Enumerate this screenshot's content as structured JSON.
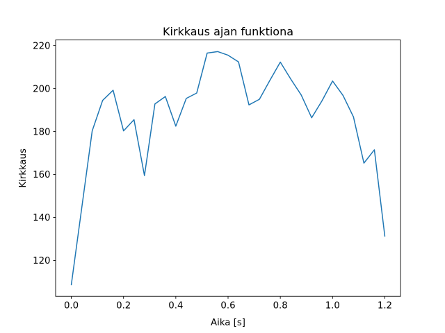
{
  "figure": {
    "background_color": "#ffffff",
    "axes_edge_color": "#000000"
  },
  "chart_data": {
    "type": "line",
    "title": "Kirkkaus ajan funktiona",
    "xlabel": "Aika [s]",
    "ylabel": "Kirkkaus",
    "line_color": "#1f77b4",
    "grid": false,
    "legend_visible": false,
    "x": [
      0.0,
      0.04,
      0.08,
      0.12,
      0.16,
      0.2,
      0.24,
      0.28,
      0.32,
      0.36,
      0.4,
      0.44,
      0.48,
      0.52,
      0.56,
      0.6,
      0.64,
      0.68,
      0.72,
      0.76,
      0.8,
      0.84,
      0.88,
      0.92,
      0.96,
      1.0,
      1.04,
      1.08,
      1.12,
      1.16,
      1.2
    ],
    "y": [
      108.7,
      144.5,
      180.3,
      194.5,
      199.2,
      180.3,
      185.5,
      159.5,
      192.8,
      196.3,
      182.5,
      195.4,
      197.9,
      216.5,
      217.2,
      215.5,
      212.4,
      192.4,
      195.0,
      203.8,
      212.3,
      204.4,
      197.0,
      186.4,
      194.4,
      203.5,
      196.8,
      186.8,
      165.3,
      171.5,
      131.3
    ],
    "xlim": [
      -0.06,
      1.26
    ],
    "ylim": [
      103.3,
      222.6
    ],
    "xticks": {
      "values": [
        0.0,
        0.2,
        0.4,
        0.6,
        0.8,
        1.0,
        1.2
      ],
      "labels": [
        "0.0",
        "0.2",
        "0.4",
        "0.6",
        "0.8",
        "1.0",
        "1.2"
      ]
    },
    "yticks": {
      "values": [
        120,
        140,
        160,
        180,
        200,
        220
      ],
      "labels": [
        "120",
        "140",
        "160",
        "180",
        "200",
        "220"
      ]
    }
  }
}
